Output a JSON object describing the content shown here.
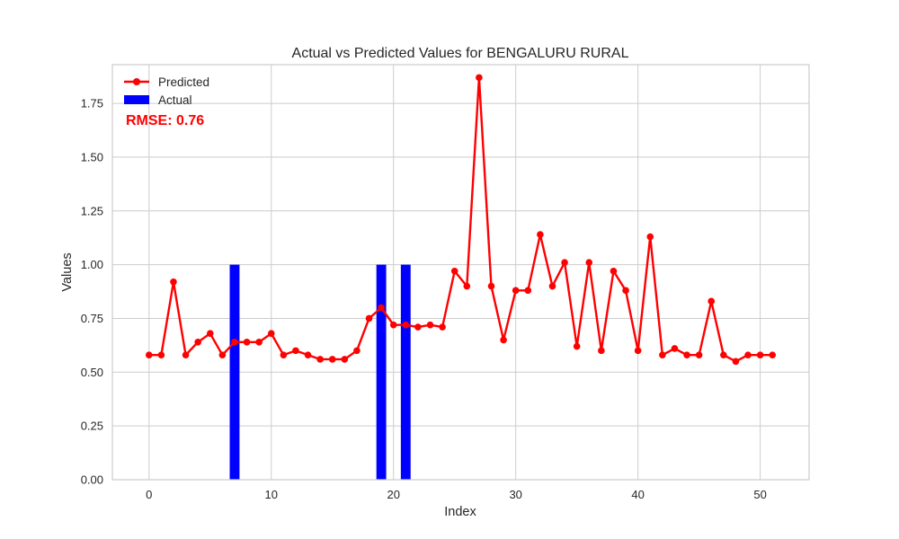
{
  "chart_data": {
    "type": "bar+line",
    "title": "Actual vs Predicted Values for BENGALURU RURAL",
    "xlabel": "Index",
    "ylabel": "Values",
    "xlim": [
      -3,
      54
    ],
    "ylim": [
      0,
      1.93
    ],
    "xticks": [
      0,
      10,
      20,
      30,
      40,
      50
    ],
    "yticks": [
      0.0,
      0.25,
      0.5,
      0.75,
      1.0,
      1.25,
      1.5,
      1.75
    ],
    "ytick_labels": [
      "0.00",
      "0.25",
      "0.50",
      "0.75",
      "1.00",
      "1.25",
      "1.50",
      "1.75"
    ],
    "grid": true,
    "legend_position": "top-left",
    "annotation": {
      "text": "RMSE: 0.76",
      "color": "#ff0000"
    },
    "series": [
      {
        "name": "Predicted",
        "type": "line",
        "color": "#ff0000",
        "x": [
          0,
          1,
          2,
          3,
          4,
          5,
          6,
          7,
          8,
          9,
          10,
          11,
          12,
          13,
          14,
          15,
          16,
          17,
          18,
          19,
          20,
          21,
          22,
          23,
          24,
          25,
          26,
          27,
          28,
          29,
          30,
          31,
          32,
          33,
          34,
          35,
          36,
          37,
          38,
          39,
          40,
          41,
          42,
          43,
          44,
          45,
          46,
          47,
          48,
          49,
          50,
          51
        ],
        "values": [
          0.58,
          0.58,
          0.92,
          0.58,
          0.64,
          0.68,
          0.58,
          0.64,
          0.64,
          0.64,
          0.68,
          0.58,
          0.6,
          0.58,
          0.56,
          0.56,
          0.56,
          0.6,
          0.75,
          0.8,
          0.72,
          0.72,
          0.71,
          0.72,
          0.71,
          0.97,
          0.9,
          1.87,
          0.9,
          0.65,
          0.88,
          0.88,
          1.14,
          0.9,
          1.01,
          0.62,
          1.01,
          0.6,
          0.97,
          0.88,
          0.6,
          1.13,
          0.58,
          0.61,
          0.58,
          0.58,
          0.83,
          0.58,
          0.55,
          0.58,
          0.58,
          0.58
        ]
      },
      {
        "name": "Actual",
        "type": "bar",
        "color": "#0000ff",
        "x": [
          7,
          19,
          21
        ],
        "values": [
          1.0,
          1.0,
          1.0
        ]
      }
    ]
  }
}
